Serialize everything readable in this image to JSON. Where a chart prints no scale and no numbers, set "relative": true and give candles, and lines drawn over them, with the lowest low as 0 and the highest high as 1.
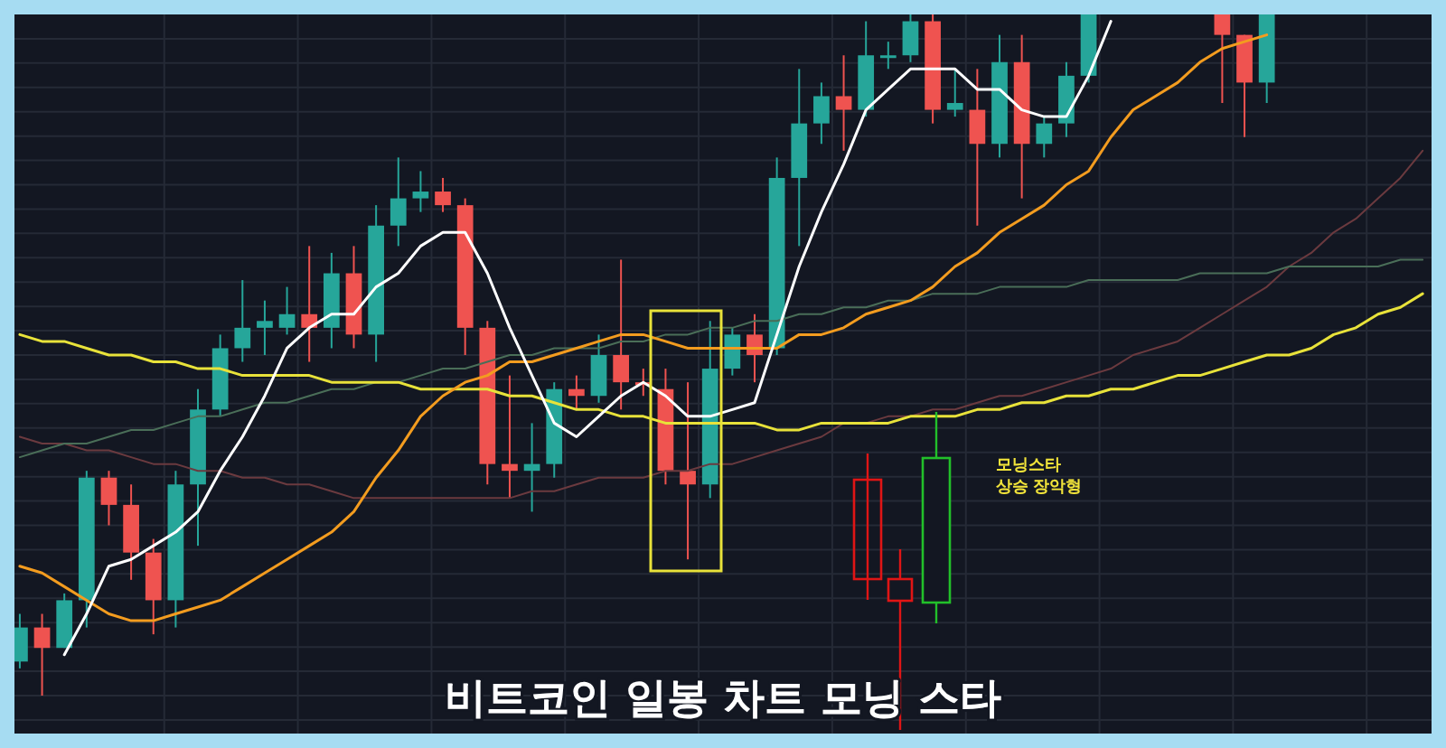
{
  "chart_data": {
    "type": "candlestick",
    "title": "비트코인 일봉 차트 모닝 스타",
    "relative": true,
    "grid": true,
    "annotations": [
      "모닝스타",
      "상승 장악형"
    ],
    "categories": [
      null,
      null,
      null,
      null,
      null,
      null,
      null,
      null,
      null,
      null,
      null,
      null,
      null,
      null,
      null,
      null,
      null,
      null,
      null,
      null,
      null,
      null,
      null,
      null,
      null,
      null,
      null,
      null,
      null,
      null,
      null,
      null,
      null,
      null,
      null,
      null,
      null,
      null,
      null,
      null,
      null,
      null,
      null,
      null,
      null,
      null,
      null,
      null,
      null,
      null,
      null,
      null,
      null,
      null,
      null,
      null,
      null,
      null,
      null,
      null,
      null,
      null,
      null,
      null
    ],
    "ohlc": [
      [
        0.05,
        0.12,
        0.04,
        0.1
      ],
      [
        0.1,
        0.12,
        0.0,
        0.07
      ],
      [
        0.07,
        0.15,
        0.07,
        0.14
      ],
      [
        0.14,
        0.33,
        0.1,
        0.32
      ],
      [
        0.32,
        0.33,
        0.25,
        0.28
      ],
      [
        0.28,
        0.31,
        0.17,
        0.21
      ],
      [
        0.21,
        0.23,
        0.09,
        0.14
      ],
      [
        0.14,
        0.33,
        0.1,
        0.31
      ],
      [
        0.31,
        0.45,
        0.22,
        0.42
      ],
      [
        0.42,
        0.53,
        0.41,
        0.51
      ],
      [
        0.51,
        0.61,
        0.49,
        0.54
      ],
      [
        0.54,
        0.58,
        0.5,
        0.55
      ],
      [
        0.54,
        0.6,
        0.53,
        0.56
      ],
      [
        0.56,
        0.66,
        0.49,
        0.54
      ],
      [
        0.54,
        0.65,
        0.51,
        0.62
      ],
      [
        0.62,
        0.66,
        0.51,
        0.53
      ],
      [
        0.53,
        0.72,
        0.49,
        0.69
      ],
      [
        0.69,
        0.79,
        0.66,
        0.73
      ],
      [
        0.73,
        0.77,
        0.71,
        0.74
      ],
      [
        0.74,
        0.76,
        0.71,
        0.72
      ],
      [
        0.72,
        0.73,
        0.5,
        0.54
      ],
      [
        0.54,
        0.55,
        0.31,
        0.34
      ],
      [
        0.34,
        0.47,
        0.29,
        0.33
      ],
      [
        0.33,
        0.4,
        0.27,
        0.34
      ],
      [
        0.34,
        0.46,
        0.32,
        0.45
      ],
      [
        0.45,
        0.47,
        0.42,
        0.44
      ],
      [
        0.44,
        0.53,
        0.43,
        0.5
      ],
      [
        0.5,
        0.64,
        0.42,
        0.46
      ],
      [
        0.46,
        0.48,
        0.44,
        0.46
      ],
      [
        0.45,
        0.48,
        0.31,
        0.33
      ],
      [
        0.33,
        0.46,
        0.2,
        0.31
      ],
      [
        0.31,
        0.55,
        0.29,
        0.48
      ],
      [
        0.48,
        0.54,
        0.47,
        0.53
      ],
      [
        0.53,
        0.56,
        0.46,
        0.5
      ],
      [
        0.51,
        0.79,
        0.5,
        0.76
      ],
      [
        0.76,
        0.92,
        0.66,
        0.84
      ],
      [
        0.84,
        0.9,
        0.81,
        0.88
      ],
      [
        0.88,
        0.94,
        0.8,
        0.86
      ],
      [
        0.86,
        0.99,
        0.85,
        0.94
      ],
      [
        0.94,
        0.96,
        0.92,
        0.94
      ],
      [
        0.94,
        1.0,
        0.93,
        0.99
      ],
      [
        0.99,
        1.0,
        0.84,
        0.86
      ],
      [
        0.86,
        0.92,
        0.85,
        0.87
      ],
      [
        0.86,
        0.92,
        0.69,
        0.81
      ],
      [
        0.81,
        0.97,
        0.79,
        0.93
      ],
      [
        0.93,
        0.97,
        0.73,
        0.81
      ],
      [
        0.81,
        0.85,
        0.79,
        0.84
      ],
      [
        0.84,
        0.93,
        0.82,
        0.91
      ],
      [
        0.91,
        1.0,
        0.9,
        1.0
      ],
      null,
      null,
      null,
      null,
      null,
      [
        1.0,
        1.0,
        0.87,
        0.97
      ],
      [
        0.97,
        0.97,
        0.82,
        0.9
      ],
      [
        0.9,
        1.0,
        0.87,
        1.0
      ],
      null,
      null,
      null,
      null,
      null,
      null,
      null
    ],
    "colors": [
      "#26a69a",
      "#ef5350",
      "#26a69a",
      "#26a69a",
      "#ef5350",
      "#ef5350",
      "#ef5350",
      "#26a69a",
      "#26a69a",
      "#26a69a",
      "#26a69a",
      "#26a69a",
      "#26a69a",
      "#ef5350",
      "#26a69a",
      "#ef5350",
      "#26a69a",
      "#26a69a",
      "#26a69a",
      "#ef5350",
      "#ef5350",
      "#ef5350",
      "#ef5350",
      "#26a69a",
      "#26a69a",
      "#ef5350",
      "#26a69a",
      "#ef5350",
      "#ef5350",
      "#ef5350",
      "#ef5350",
      "#26a69a",
      "#26a69a",
      "#ef5350",
      "#26a69a",
      "#26a69a",
      "#26a69a",
      "#ef5350",
      "#26a69a",
      "#26a69a",
      "#26a69a",
      "#ef5350",
      "#26a69a",
      "#ef5350",
      "#26a69a",
      "#ef5350",
      "#26a69a",
      "#26a69a",
      "#26a69a",
      null,
      null,
      null,
      null,
      null,
      "#ef5350",
      "#ef5350",
      "#26a69a",
      null,
      null,
      null,
      null,
      null,
      null,
      null
    ],
    "series": [
      {
        "type": "line",
        "color": "#6b3a3f",
        "values": [
          0.38,
          0.37,
          0.37,
          0.36,
          0.36,
          0.35,
          0.34,
          0.34,
          0.33,
          0.33,
          0.32,
          0.32,
          0.31,
          0.31,
          0.3,
          0.29,
          0.29,
          0.29,
          0.29,
          0.29,
          0.29,
          0.29,
          0.29,
          0.3,
          0.3,
          0.31,
          0.32,
          0.32,
          0.32,
          0.33,
          0.33,
          0.34,
          0.34,
          0.35,
          0.36,
          0.37,
          0.38,
          0.4,
          0.4,
          0.41,
          0.41,
          0.42,
          0.42,
          0.43,
          0.44,
          0.44,
          0.45,
          0.46,
          0.47,
          0.48,
          0.5,
          0.51,
          0.52,
          0.54,
          0.56,
          0.58,
          0.6,
          0.63,
          0.65,
          0.68,
          0.7,
          0.73,
          0.76,
          0.8
        ]
      },
      {
        "type": "line",
        "color": "#4a6e58",
        "values": [
          0.35,
          0.36,
          0.37,
          0.37,
          0.38,
          0.39,
          0.39,
          0.4,
          0.41,
          0.41,
          0.42,
          0.43,
          0.43,
          0.44,
          0.45,
          0.45,
          0.46,
          0.46,
          0.47,
          0.48,
          0.48,
          0.49,
          0.5,
          0.5,
          0.51,
          0.51,
          0.51,
          0.52,
          0.52,
          0.53,
          0.53,
          0.54,
          0.54,
          0.55,
          0.55,
          0.56,
          0.56,
          0.57,
          0.57,
          0.58,
          0.58,
          0.59,
          0.59,
          0.59,
          0.6,
          0.6,
          0.6,
          0.6,
          0.61,
          0.61,
          0.61,
          0.61,
          0.61,
          0.62,
          0.62,
          0.62,
          0.62,
          0.63,
          0.63,
          0.63,
          0.63,
          0.63,
          0.64,
          0.64
        ]
      },
      {
        "type": "line",
        "color": "#e8e23a",
        "values": [
          0.53,
          0.52,
          0.52,
          0.51,
          0.5,
          0.5,
          0.49,
          0.49,
          0.48,
          0.48,
          0.47,
          0.47,
          0.47,
          0.47,
          0.46,
          0.46,
          0.46,
          0.46,
          0.45,
          0.45,
          0.45,
          0.45,
          0.44,
          0.44,
          0.43,
          0.42,
          0.42,
          0.41,
          0.41,
          0.4,
          0.4,
          0.4,
          0.4,
          0.4,
          0.39,
          0.39,
          0.4,
          0.4,
          0.4,
          0.4,
          0.41,
          0.41,
          0.41,
          0.42,
          0.42,
          0.43,
          0.43,
          0.44,
          0.44,
          0.45,
          0.45,
          0.46,
          0.47,
          0.47,
          0.48,
          0.49,
          0.5,
          0.5,
          0.51,
          0.53,
          0.54,
          0.56,
          0.57,
          0.59
        ]
      },
      {
        "type": "line",
        "color": "#f39c1f",
        "values": [
          0.19,
          0.18,
          0.16,
          0.14,
          0.12,
          0.11,
          0.11,
          0.12,
          0.13,
          0.14,
          0.16,
          0.18,
          0.2,
          0.22,
          0.24,
          0.27,
          0.32,
          0.36,
          0.41,
          0.44,
          0.46,
          0.47,
          0.49,
          0.49,
          0.5,
          0.51,
          0.52,
          0.53,
          0.53,
          0.52,
          0.51,
          0.51,
          0.51,
          0.51,
          0.51,
          0.53,
          0.53,
          0.54,
          0.56,
          0.57,
          0.58,
          0.6,
          0.63,
          0.65,
          0.68,
          0.7,
          0.72,
          0.75,
          0.77,
          0.82,
          0.86,
          0.88,
          0.9,
          0.93,
          0.95,
          0.96,
          0.97,
          null,
          null,
          null,
          null,
          null,
          null,
          null
        ]
      },
      {
        "type": "line",
        "color": "#ffffff",
        "values": [
          null,
          null,
          0.06,
          0.12,
          0.19,
          0.2,
          0.22,
          0.24,
          0.27,
          0.33,
          0.38,
          0.44,
          0.51,
          0.54,
          0.56,
          0.56,
          0.6,
          0.62,
          0.66,
          0.68,
          0.68,
          0.62,
          0.54,
          0.47,
          0.4,
          0.38,
          0.41,
          0.44,
          0.46,
          0.44,
          0.41,
          0.41,
          0.42,
          0.43,
          0.53,
          0.63,
          0.71,
          0.78,
          0.86,
          0.89,
          0.92,
          0.92,
          0.92,
          0.89,
          0.89,
          0.86,
          0.85,
          0.85,
          0.91,
          0.99,
          null,
          null,
          null,
          null,
          null,
          null,
          null,
          null,
          null,
          null,
          null,
          null,
          null,
          null
        ]
      }
    ]
  }
}
